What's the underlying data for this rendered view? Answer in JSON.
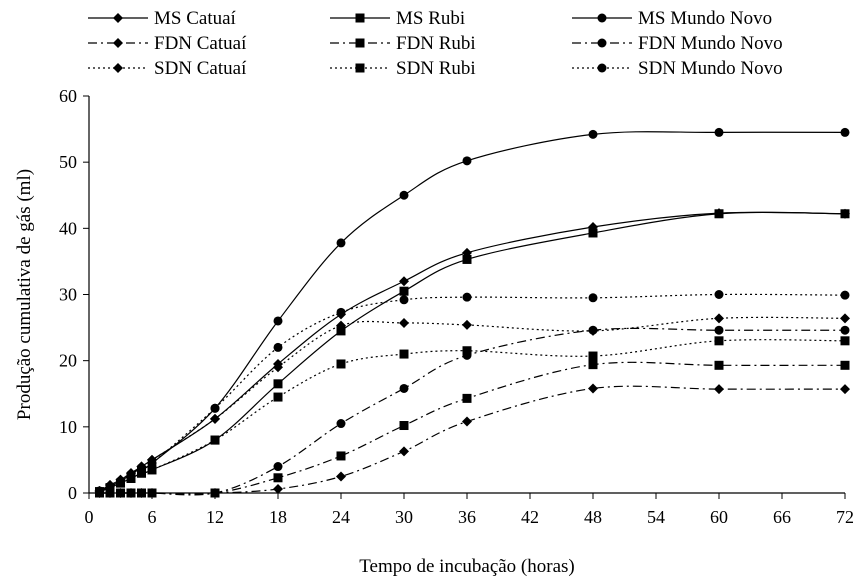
{
  "chart_data": {
    "type": "line",
    "title": "",
    "xlabel": "Tempo de incubação (horas)",
    "ylabel": "Produção cumulativa de gás (ml)",
    "xlim": [
      0,
      72
    ],
    "ylim": [
      0,
      60
    ],
    "x_ticks": [
      "0",
      "6",
      "12",
      "18",
      "24",
      "30",
      "36",
      "42",
      "48",
      "54",
      "60",
      "66",
      "72"
    ],
    "y_ticks": [
      "0",
      "10",
      "20",
      "30",
      "40",
      "50",
      "60"
    ],
    "grid": false,
    "legend_position": "top",
    "x": [
      1,
      2,
      3,
      4,
      5,
      6,
      12,
      18,
      24,
      30,
      36,
      48,
      60,
      72
    ],
    "series": [
      {
        "name": "MS Catuaí",
        "marker": "diamond",
        "dash": "solid",
        "values": [
          0.3,
          1.2,
          2.0,
          3.0,
          4.0,
          5.0,
          11.2,
          19.5,
          27.0,
          32.0,
          36.3,
          40.2,
          42.3,
          42.2
        ]
      },
      {
        "name": "MS Rubi",
        "marker": "square",
        "dash": "solid",
        "values": [
          0.2,
          0.8,
          1.5,
          2.2,
          3.0,
          3.5,
          8.0,
          16.5,
          24.5,
          30.5,
          35.3,
          39.3,
          42.2,
          42.2
        ]
      },
      {
        "name": "MS Mundo Novo",
        "marker": "circle",
        "dash": "solid",
        "values": [
          0.3,
          1.0,
          1.8,
          2.8,
          3.8,
          4.5,
          12.8,
          26.0,
          37.8,
          45.0,
          50.2,
          54.2,
          54.5,
          54.5
        ]
      },
      {
        "name": "FDN Catuaí",
        "marker": "diamond",
        "dash": "dashdot",
        "values": [
          0,
          0,
          0,
          0,
          0,
          0,
          0,
          0.6,
          2.5,
          6.3,
          10.8,
          15.8,
          15.7,
          15.7
        ]
      },
      {
        "name": "FDN Rubi",
        "marker": "square",
        "dash": "dashdot",
        "values": [
          0,
          0,
          0,
          0,
          0,
          0,
          0,
          2.3,
          5.6,
          10.2,
          14.3,
          19.4,
          19.3,
          19.3
        ]
      },
      {
        "name": "FDN Mundo Novo",
        "marker": "circle",
        "dash": "dashdot",
        "values": [
          0,
          0,
          0,
          0,
          0,
          0,
          0,
          4.0,
          10.5,
          15.8,
          20.8,
          24.6,
          24.6,
          24.6
        ]
      },
      {
        "name": "SDN Catuaí",
        "marker": "diamond",
        "dash": "dotted",
        "values": [
          0.3,
          1.2,
          2.0,
          3.0,
          4.0,
          5.0,
          11.2,
          19.0,
          25.3,
          25.7,
          25.4,
          24.5,
          26.4,
          26.4
        ]
      },
      {
        "name": "SDN Rubi",
        "marker": "square",
        "dash": "dotted",
        "values": [
          0.2,
          0.8,
          1.5,
          2.2,
          3.0,
          3.5,
          8.0,
          14.5,
          19.5,
          21.0,
          21.5,
          20.7,
          23.0,
          23.0
        ]
      },
      {
        "name": "SDN Mundo Novo",
        "marker": "circle",
        "dash": "dotted",
        "values": [
          0.3,
          1.0,
          1.8,
          2.8,
          3.8,
          4.5,
          12.8,
          22.0,
          27.3,
          29.2,
          29.6,
          29.5,
          30.0,
          29.9
        ]
      }
    ]
  }
}
